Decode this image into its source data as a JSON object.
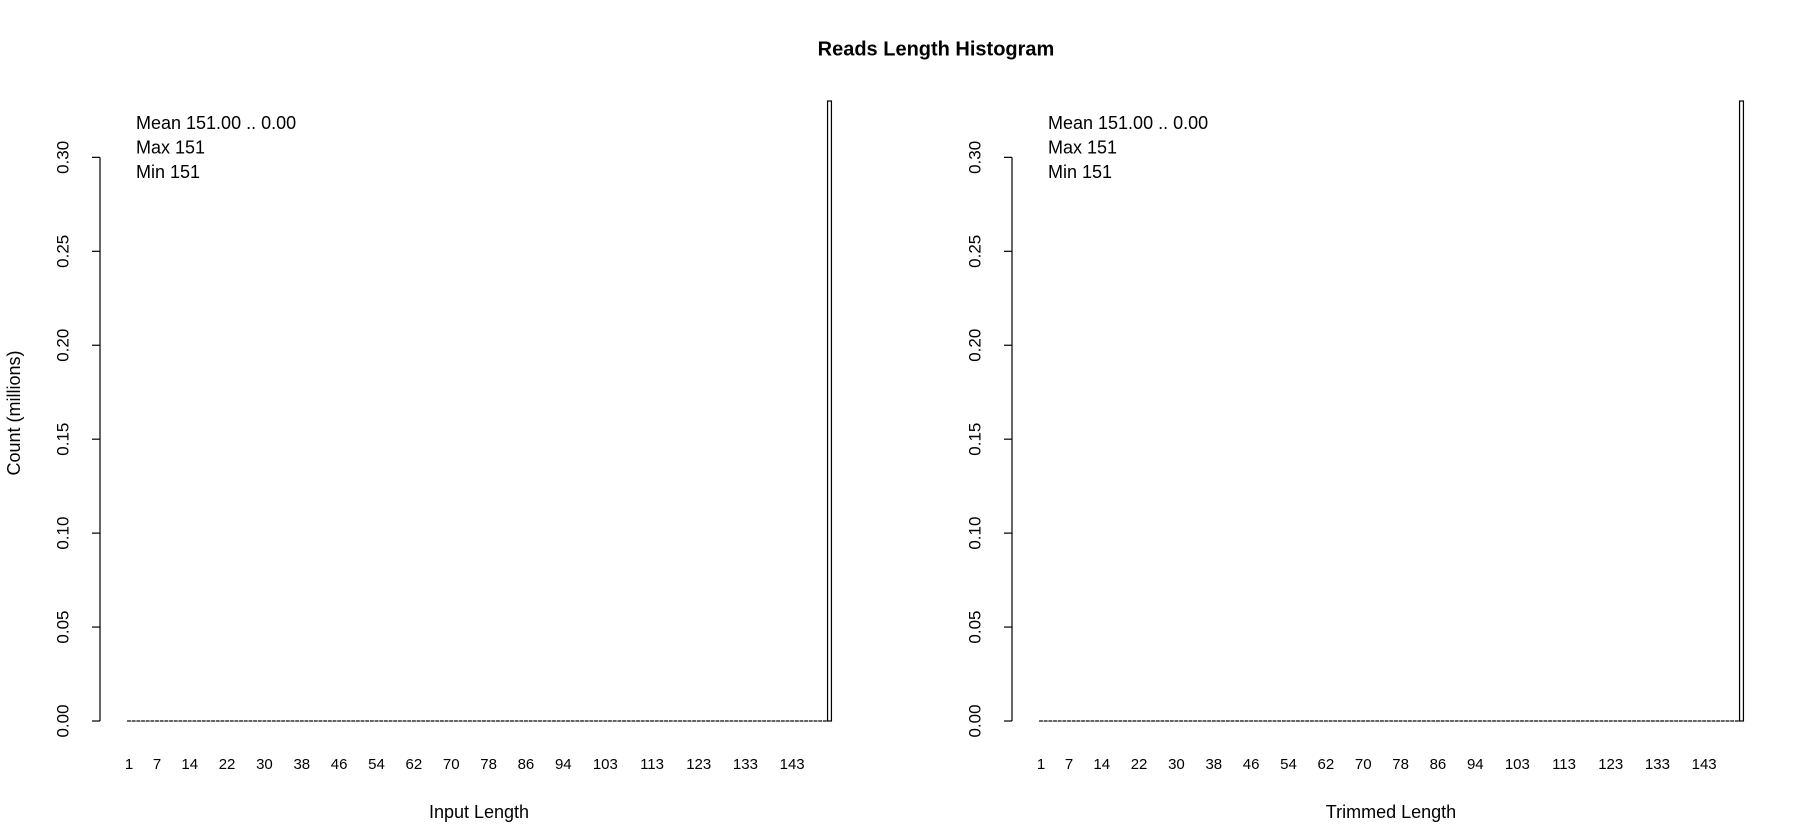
{
  "title": "Reads Length Histogram",
  "chart_data": [
    {
      "type": "bar",
      "xlabel": "Input Length",
      "ylabel": "Count (millions)",
      "annotations": [
        "Mean 151.00 .. 0.00",
        "Max 151",
        "Min 151"
      ],
      "categories": [
        "1",
        null,
        null,
        null,
        null,
        null,
        "7",
        null,
        null,
        null,
        null,
        null,
        null,
        "14",
        null,
        null,
        null,
        null,
        null,
        null,
        null,
        "22",
        null,
        null,
        null,
        null,
        null,
        null,
        null,
        "30",
        null,
        null,
        null,
        null,
        null,
        null,
        null,
        "38",
        null,
        null,
        null,
        null,
        null,
        null,
        null,
        "46",
        null,
        null,
        null,
        null,
        null,
        null,
        null,
        "54",
        null,
        null,
        null,
        null,
        null,
        null,
        null,
        "62",
        null,
        null,
        null,
        null,
        null,
        null,
        null,
        "70",
        null,
        null,
        null,
        null,
        null,
        null,
        null,
        "78",
        null,
        null,
        null,
        null,
        null,
        null,
        null,
        "86",
        null,
        null,
        null,
        null,
        null,
        null,
        null,
        "94",
        null,
        null,
        null,
        null,
        null,
        null,
        null,
        null,
        "103",
        null,
        null,
        null,
        null,
        null,
        null,
        null,
        null,
        null,
        "113",
        null,
        null,
        null,
        null,
        null,
        null,
        null,
        null,
        null,
        "123",
        null,
        null,
        null,
        null,
        null,
        null,
        null,
        null,
        null,
        "133",
        null,
        null,
        null,
        null,
        null,
        null,
        null,
        null,
        null,
        "143",
        null,
        null,
        null,
        null,
        null,
        null,
        null,
        null
      ],
      "values": [
        0,
        0,
        0,
        0,
        0,
        0,
        0,
        0,
        0,
        0,
        0,
        0,
        0,
        0,
        0,
        0,
        0,
        0,
        0,
        0,
        0,
        0,
        0,
        0,
        0,
        0,
        0,
        0,
        0,
        0,
        0,
        0,
        0,
        0,
        0,
        0,
        0,
        0,
        0,
        0,
        0,
        0,
        0,
        0,
        0,
        0,
        0,
        0,
        0,
        0,
        0,
        0,
        0,
        0,
        0,
        0,
        0,
        0,
        0,
        0,
        0,
        0,
        0,
        0,
        0,
        0,
        0,
        0,
        0,
        0,
        0,
        0,
        0,
        0,
        0,
        0,
        0,
        0,
        0,
        0,
        0,
        0,
        0,
        0,
        0,
        0,
        0,
        0,
        0,
        0,
        0,
        0,
        0,
        0,
        0,
        0,
        0,
        0,
        0,
        0,
        0,
        0,
        0,
        0,
        0,
        0,
        0,
        0,
        0,
        0,
        0,
        0,
        0,
        0,
        0,
        0,
        0,
        0,
        0,
        0,
        0,
        0,
        0,
        0,
        0,
        0,
        0,
        0,
        0,
        0,
        0,
        0,
        0,
        0,
        0,
        0,
        0,
        0,
        0,
        0,
        0,
        0,
        0,
        0,
        0,
        0,
        0,
        0,
        0,
        0,
        0.33
      ],
      "color": "#ffffff",
      "ylim": [
        0,
        0.33
      ],
      "yticks": [
        {
          "value": 0,
          "label": "0.00"
        },
        {
          "value": 0.05,
          "label": "0.05"
        },
        {
          "value": 0.1,
          "label": "0.10"
        },
        {
          "value": 0.15,
          "label": "0.15"
        },
        {
          "value": 0.2,
          "label": "0.20"
        },
        {
          "value": 0.25,
          "label": "0.25"
        },
        {
          "value": 0.3,
          "label": "0.30"
        }
      ]
    },
    {
      "type": "bar",
      "xlabel": "Trimmed Length",
      "annotations": [
        "Mean 151.00 .. 0.00",
        "Max 151",
        "Min 151"
      ],
      "categories": [
        "1",
        null,
        null,
        null,
        null,
        null,
        "7",
        null,
        null,
        null,
        null,
        null,
        null,
        "14",
        null,
        null,
        null,
        null,
        null,
        null,
        null,
        "22",
        null,
        null,
        null,
        null,
        null,
        null,
        null,
        "30",
        null,
        null,
        null,
        null,
        null,
        null,
        null,
        "38",
        null,
        null,
        null,
        null,
        null,
        null,
        null,
        "46",
        null,
        null,
        null,
        null,
        null,
        null,
        null,
        "54",
        null,
        null,
        null,
        null,
        null,
        null,
        null,
        "62",
        null,
        null,
        null,
        null,
        null,
        null,
        null,
        "70",
        null,
        null,
        null,
        null,
        null,
        null,
        null,
        "78",
        null,
        null,
        null,
        null,
        null,
        null,
        null,
        "86",
        null,
        null,
        null,
        null,
        null,
        null,
        null,
        "94",
        null,
        null,
        null,
        null,
        null,
        null,
        null,
        null,
        "103",
        null,
        null,
        null,
        null,
        null,
        null,
        null,
        null,
        null,
        "113",
        null,
        null,
        null,
        null,
        null,
        null,
        null,
        null,
        null,
        "123",
        null,
        null,
        null,
        null,
        null,
        null,
        null,
        null,
        null,
        "133",
        null,
        null,
        null,
        null,
        null,
        null,
        null,
        null,
        null,
        "143",
        null,
        null,
        null,
        null,
        null,
        null,
        null,
        null
      ],
      "values": [
        0,
        0,
        0,
        0,
        0,
        0,
        0,
        0,
        0,
        0,
        0,
        0,
        0,
        0,
        0,
        0,
        0,
        0,
        0,
        0,
        0,
        0,
        0,
        0,
        0,
        0,
        0,
        0,
        0,
        0,
        0,
        0,
        0,
        0,
        0,
        0,
        0,
        0,
        0,
        0,
        0,
        0,
        0,
        0,
        0,
        0,
        0,
        0,
        0,
        0,
        0,
        0,
        0,
        0,
        0,
        0,
        0,
        0,
        0,
        0,
        0,
        0,
        0,
        0,
        0,
        0,
        0,
        0,
        0,
        0,
        0,
        0,
        0,
        0,
        0,
        0,
        0,
        0,
        0,
        0,
        0,
        0,
        0,
        0,
        0,
        0,
        0,
        0,
        0,
        0,
        0,
        0,
        0,
        0,
        0,
        0,
        0,
        0,
        0,
        0,
        0,
        0,
        0,
        0,
        0,
        0,
        0,
        0,
        0,
        0,
        0,
        0,
        0,
        0,
        0,
        0,
        0,
        0,
        0,
        0,
        0,
        0,
        0,
        0,
        0,
        0,
        0,
        0,
        0,
        0,
        0,
        0,
        0,
        0,
        0,
        0,
        0,
        0,
        0,
        0,
        0,
        0,
        0,
        0,
        0,
        0,
        0,
        0,
        0,
        0,
        0.33
      ],
      "color": "#ffffff",
      "ylim": [
        0,
        0.33
      ],
      "yticks": [
        {
          "value": 0,
          "label": "0.00"
        },
        {
          "value": 0.05,
          "label": "0.05"
        },
        {
          "value": 0.1,
          "label": "0.10"
        },
        {
          "value": 0.15,
          "label": "0.15"
        },
        {
          "value": 0.2,
          "label": "0.20"
        },
        {
          "value": 0.25,
          "label": "0.25"
        },
        {
          "value": 0.3,
          "label": "0.30"
        }
      ]
    }
  ]
}
